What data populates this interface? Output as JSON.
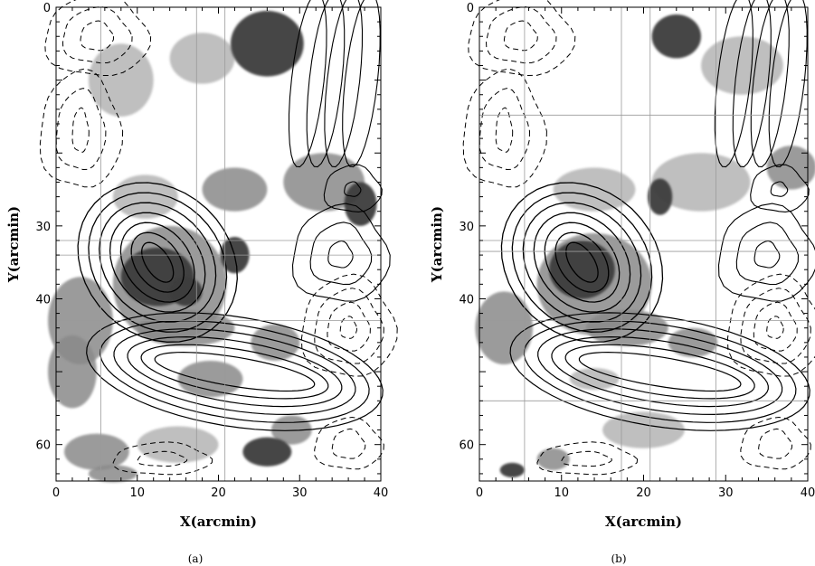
{
  "chart_data": [
    {
      "panel": "a",
      "type": "heatmap",
      "caption": "(a)",
      "xlabel": "X(arcmin)",
      "ylabel": "Y(arcmin)",
      "xlim": [
        0,
        40
      ],
      "ylim": [
        0,
        65
      ],
      "y_inverted": true,
      "xticks": [
        0,
        10,
        20,
        30,
        40
      ],
      "yticks": [
        0,
        30,
        40,
        60
      ],
      "grayscale_blobs": [
        {
          "x": 26,
          "y": 5,
          "rx": 4.5,
          "ry": 4.5,
          "level": 3
        },
        {
          "x": 18,
          "y": 7,
          "rx": 4,
          "ry": 3.5,
          "level": 1
        },
        {
          "x": 8,
          "y": 10,
          "rx": 4,
          "ry": 5,
          "level": 1
        },
        {
          "x": 37.5,
          "y": 27,
          "rx": 2,
          "ry": 3,
          "level": 3
        },
        {
          "x": 33,
          "y": 24,
          "rx": 5,
          "ry": 4,
          "level": 2
        },
        {
          "x": 22,
          "y": 25,
          "rx": 4,
          "ry": 3,
          "level": 2
        },
        {
          "x": 11,
          "y": 26,
          "rx": 4,
          "ry": 3,
          "level": 1
        },
        {
          "x": 12.5,
          "y": 37,
          "rx": 4.5,
          "ry": 4,
          "level": 3
        },
        {
          "x": 16,
          "y": 39,
          "rx": 2,
          "ry": 2,
          "level": 3
        },
        {
          "x": 22,
          "y": 34,
          "rx": 1.8,
          "ry": 2.5,
          "level": 3
        },
        {
          "x": 14,
          "y": 38,
          "rx": 7,
          "ry": 8,
          "level": 2
        },
        {
          "x": 3,
          "y": 43,
          "rx": 4,
          "ry": 6,
          "level": 2
        },
        {
          "x": 2,
          "y": 50,
          "rx": 3,
          "ry": 5,
          "level": 2
        },
        {
          "x": 16,
          "y": 44,
          "rx": 6,
          "ry": 2.5,
          "level": 2
        },
        {
          "x": 19,
          "y": 51,
          "rx": 4,
          "ry": 2.5,
          "level": 2
        },
        {
          "x": 27,
          "y": 46,
          "rx": 3,
          "ry": 2.5,
          "level": 2
        },
        {
          "x": 29,
          "y": 58,
          "rx": 2.5,
          "ry": 2,
          "level": 2
        },
        {
          "x": 26,
          "y": 61,
          "rx": 3,
          "ry": 2,
          "level": 3
        },
        {
          "x": 15,
          "y": 60,
          "rx": 5,
          "ry": 2.5,
          "level": 1
        },
        {
          "x": 5,
          "y": 61,
          "rx": 4,
          "ry": 2.5,
          "level": 2
        },
        {
          "x": 7,
          "y": 64,
          "rx": 3,
          "ry": 1.2,
          "level": 2
        }
      ]
    },
    {
      "panel": "b",
      "type": "heatmap",
      "caption": "(b)",
      "xlabel": "X(arcmin)",
      "ylabel": "Y(arcmin)",
      "xlim": [
        0,
        40
      ],
      "ylim": [
        0,
        65
      ],
      "y_inverted": true,
      "xticks": [
        0,
        10,
        20,
        30,
        40
      ],
      "yticks": [
        0,
        30,
        40,
        60
      ],
      "grayscale_blobs": [
        {
          "x": 24,
          "y": 4,
          "rx": 3,
          "ry": 3,
          "level": 3
        },
        {
          "x": 32,
          "y": 8,
          "rx": 5,
          "ry": 4,
          "level": 1
        },
        {
          "x": 38,
          "y": 22,
          "rx": 3,
          "ry": 3,
          "level": 2
        },
        {
          "x": 27,
          "y": 24,
          "rx": 6,
          "ry": 4,
          "level": 1
        },
        {
          "x": 22,
          "y": 26,
          "rx": 1.5,
          "ry": 2.5,
          "level": 3
        },
        {
          "x": 14,
          "y": 25,
          "rx": 5,
          "ry": 3,
          "level": 1
        },
        {
          "x": 12.5,
          "y": 36,
          "rx": 4,
          "ry": 4,
          "level": 3
        },
        {
          "x": 14,
          "y": 38,
          "rx": 7,
          "ry": 7,
          "level": 2
        },
        {
          "x": 3,
          "y": 44,
          "rx": 3.5,
          "ry": 5,
          "level": 2
        },
        {
          "x": 18,
          "y": 44,
          "rx": 5,
          "ry": 2.5,
          "level": 2
        },
        {
          "x": 26,
          "y": 46,
          "rx": 3,
          "ry": 2,
          "level": 2
        },
        {
          "x": 14,
          "y": 51,
          "rx": 3,
          "ry": 1.5,
          "level": 1
        },
        {
          "x": 9,
          "y": 62,
          "rx": 2,
          "ry": 1.5,
          "level": 2
        },
        {
          "x": 4,
          "y": 63.5,
          "rx": 1.5,
          "ry": 1,
          "level": 3
        },
        {
          "x": 20,
          "y": 58,
          "rx": 5,
          "ry": 2.5,
          "level": 1
        }
      ]
    }
  ],
  "colors": {
    "dark_gray": "#3c3c3c",
    "mid_gray": "#8a8a8a",
    "light_gray": "#b4b4b4",
    "contour": "#000000",
    "background": "#ffffff"
  }
}
